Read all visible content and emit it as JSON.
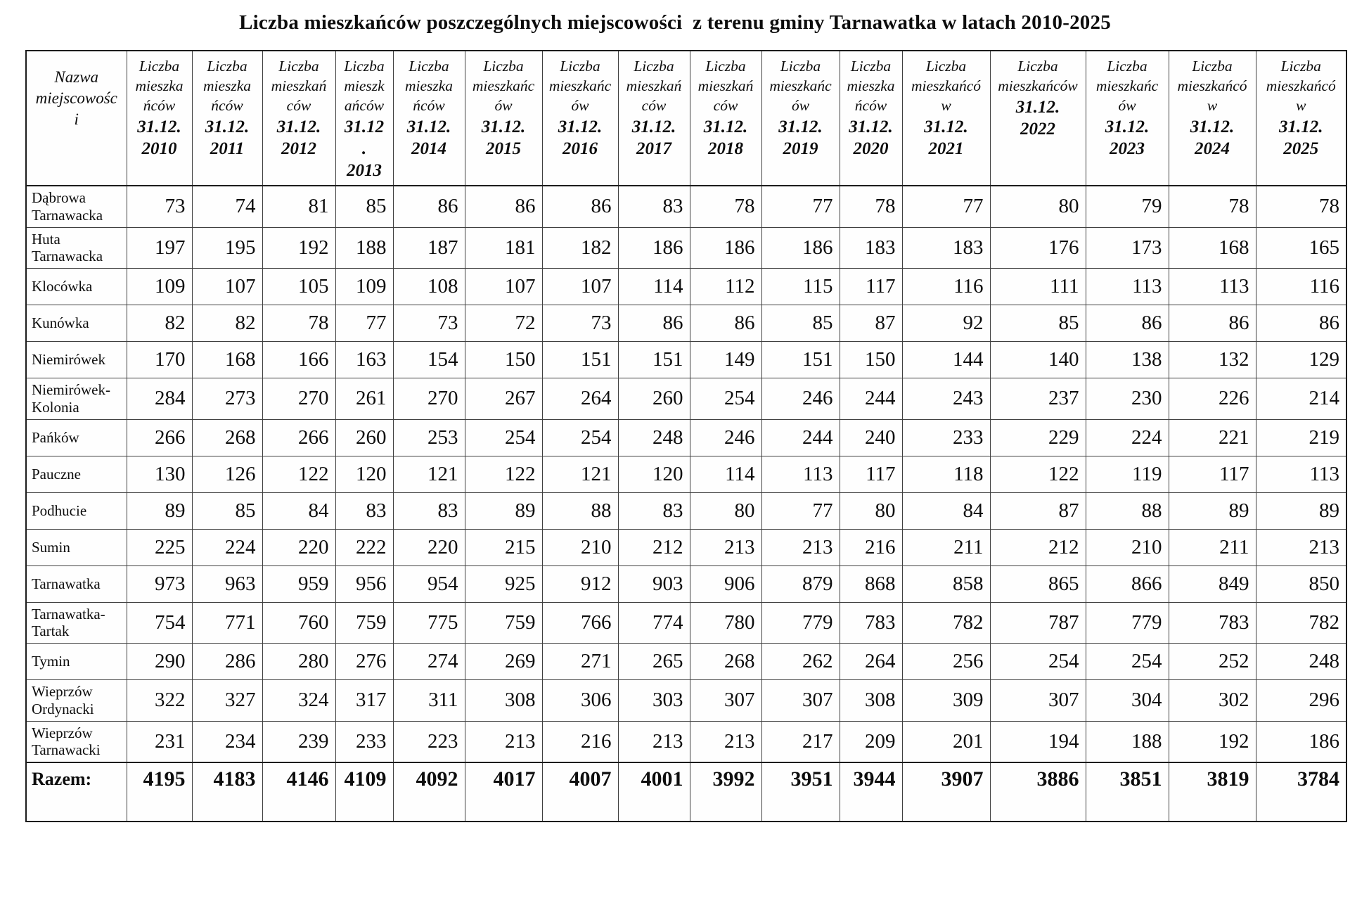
{
  "title": "Liczba mieszkańców poszczególnych miejscowości  z terenu gminy Tarnawatka w latach 2010-2025",
  "table": {
    "name_header": "Nazwa\nmiejscowośc\ni",
    "columns": [
      {
        "label": "Liczba\nmieszka\nńców",
        "date": "31.12.",
        "year": "2010"
      },
      {
        "label": "Liczba\nmieszka\nńców",
        "date": "31.12.",
        "year": "2011"
      },
      {
        "label": "Liczba\nmieszkań\nców",
        "date": "31.12.",
        "year": "2012"
      },
      {
        "label": "Liczba\nmieszk\nańców",
        "date": "31.12\n.",
        "year": "2013"
      },
      {
        "label": "Liczba\nmieszka\nńców",
        "date": "31.12.",
        "year": "2014"
      },
      {
        "label": "Liczba\nmieszkańc\nów",
        "date": "31.12.",
        "year": "2015"
      },
      {
        "label": "Liczba\nmieszkańc\nów",
        "date": "31.12.",
        "year": "2016"
      },
      {
        "label": "Liczba\nmieszkań\nców",
        "date": "31.12.",
        "year": "2017"
      },
      {
        "label": "Liczba\nmieszkań\nców",
        "date": "31.12.",
        "year": "2018"
      },
      {
        "label": "Liczba\nmieszkańc\nów",
        "date": "31.12.",
        "year": "2019"
      },
      {
        "label": "Liczba\nmieszka\nńców",
        "date": "31.12.",
        "year": "2020"
      },
      {
        "label": "Liczba\nmieszkańcó\nw",
        "date": "31.12.",
        "year": "2021"
      },
      {
        "label": "Liczba\nmieszkańców",
        "date": "31.12.",
        "year": "2022"
      },
      {
        "label": "Liczba\nmieszkańc\nów",
        "date": "31.12.",
        "year": "2023"
      },
      {
        "label": "Liczba\nmieszkańcó\nw",
        "date": "31.12.",
        "year": "2024"
      },
      {
        "label": "Liczba\nmieszkańcó\nw",
        "date": "31.12.",
        "year": "2025"
      }
    ],
    "rows": [
      {
        "name": "Dąbrowa Tarnawacka",
        "values": [
          73,
          74,
          81,
          85,
          86,
          86,
          86,
          83,
          78,
          77,
          78,
          77,
          80,
          79,
          78,
          78
        ]
      },
      {
        "name": "Huta Tarnawacka",
        "values": [
          197,
          195,
          192,
          188,
          187,
          181,
          182,
          186,
          186,
          186,
          183,
          183,
          176,
          173,
          168,
          165
        ]
      },
      {
        "name": "Klocówka",
        "values": [
          109,
          107,
          105,
          109,
          108,
          107,
          107,
          114,
          112,
          115,
          117,
          116,
          111,
          113,
          113,
          116
        ]
      },
      {
        "name": "Kunówka",
        "values": [
          82,
          82,
          78,
          77,
          73,
          72,
          73,
          86,
          86,
          85,
          87,
          92,
          85,
          86,
          86,
          86
        ]
      },
      {
        "name": "Niemirówek",
        "values": [
          170,
          168,
          166,
          163,
          154,
          150,
          151,
          151,
          149,
          151,
          150,
          144,
          140,
          138,
          132,
          129
        ]
      },
      {
        "name": "Niemirówek-Kolonia",
        "values": [
          284,
          273,
          270,
          261,
          270,
          267,
          264,
          260,
          254,
          246,
          244,
          243,
          237,
          230,
          226,
          214
        ]
      },
      {
        "name": "Pańków",
        "values": [
          266,
          268,
          266,
          260,
          253,
          254,
          254,
          248,
          246,
          244,
          240,
          233,
          229,
          224,
          221,
          219
        ]
      },
      {
        "name": "Pauczne",
        "values": [
          130,
          126,
          122,
          120,
          121,
          122,
          121,
          120,
          114,
          113,
          117,
          118,
          122,
          119,
          117,
          113
        ]
      },
      {
        "name": "Podhucie",
        "values": [
          89,
          85,
          84,
          83,
          83,
          89,
          88,
          83,
          80,
          77,
          80,
          84,
          87,
          88,
          89,
          89
        ]
      },
      {
        "name": "Sumin",
        "values": [
          225,
          224,
          220,
          222,
          220,
          215,
          210,
          212,
          213,
          213,
          216,
          211,
          212,
          210,
          211,
          213
        ]
      },
      {
        "name": "Tarnawatka",
        "values": [
          973,
          963,
          959,
          956,
          954,
          925,
          912,
          903,
          906,
          879,
          868,
          858,
          865,
          866,
          849,
          850
        ]
      },
      {
        "name": "Tarnawatka-Tartak",
        "values": [
          754,
          771,
          760,
          759,
          775,
          759,
          766,
          774,
          780,
          779,
          783,
          782,
          787,
          779,
          783,
          782
        ]
      },
      {
        "name": "Tymin",
        "values": [
          290,
          286,
          280,
          276,
          274,
          269,
          271,
          265,
          268,
          262,
          264,
          256,
          254,
          254,
          252,
          248
        ]
      },
      {
        "name": "Wieprzów Ordynacki",
        "values": [
          322,
          327,
          324,
          317,
          311,
          308,
          306,
          303,
          307,
          307,
          308,
          309,
          307,
          304,
          302,
          296
        ]
      },
      {
        "name": "Wieprzów Tarnawacki",
        "values": [
          231,
          234,
          239,
          233,
          223,
          213,
          216,
          213,
          213,
          217,
          209,
          201,
          194,
          188,
          192,
          186
        ]
      }
    ],
    "total": {
      "name": "Razem:",
      "values": [
        4195,
        4183,
        4146,
        4109,
        4092,
        4017,
        4007,
        4001,
        3992,
        3951,
        3944,
        3907,
        3886,
        3851,
        3819,
        3784
      ]
    }
  }
}
